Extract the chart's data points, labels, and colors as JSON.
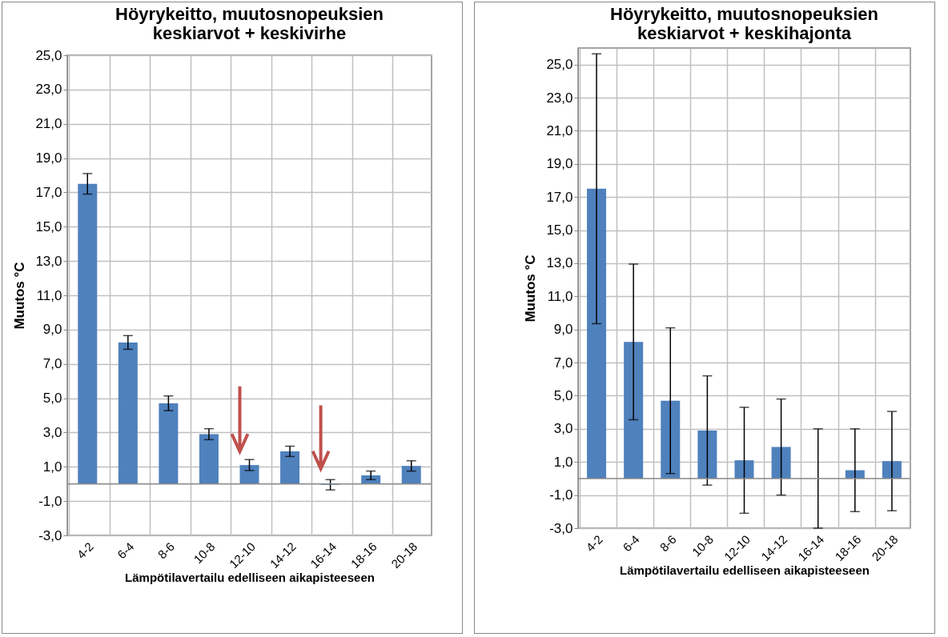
{
  "chart_data": [
    {
      "type": "bar",
      "title": "Höyrykeitto, muutosnopeuksien\nkeskiarvot + keskivirhe",
      "xlabel": "Lämpötilavertailu edelliseen aikapisteeseen",
      "ylabel": "Muutos °C",
      "categories": [
        "4-2",
        "6-4",
        "8-6",
        "10-8",
        "12-10",
        "14-12",
        "16-14",
        "18-16",
        "20-18"
      ],
      "series": [
        {
          "color": "#4f81bd",
          "values": [
            17.5,
            8.25,
            4.7,
            2.9,
            1.1,
            1.9,
            -0.05,
            0.5,
            1.05
          ],
          "errors": [
            0.6,
            0.4,
            0.43,
            0.32,
            0.32,
            0.3,
            0.3,
            0.25,
            0.3
          ]
        }
      ],
      "ylim": [
        -3,
        25
      ],
      "yticks": [
        {
          "value": -3,
          "label": "-3,0"
        },
        {
          "value": -1,
          "label": "-1,0"
        },
        {
          "value": 1,
          "label": "1,0"
        },
        {
          "value": 3,
          "label": "3,0"
        },
        {
          "value": 5,
          "label": "5,0"
        },
        {
          "value": 7,
          "label": "7,0"
        },
        {
          "value": 9,
          "label": "9,0"
        },
        {
          "value": 11,
          "label": "11,0"
        },
        {
          "value": 13,
          "label": "13,0"
        },
        {
          "value": 15,
          "label": "15,0"
        },
        {
          "value": 17,
          "label": "17,0"
        },
        {
          "value": 19,
          "label": "19,0"
        },
        {
          "value": 21,
          "label": "21,0"
        },
        {
          "value": 23,
          "label": "23,0"
        },
        {
          "value": 25,
          "label": "25,0"
        }
      ],
      "grid": true
    },
    {
      "type": "bar",
      "title": "Höyrykeitto, muutosnopeuksien\nkeskiarvot + keskihajonta",
      "xlabel": "Lämpötilavertailu edelliseen aikapisteeseen",
      "ylabel": "Muutos °C",
      "categories": [
        "4-2",
        "6-4",
        "8-6",
        "10-8",
        "12-10",
        "14-12",
        "16-14",
        "18-16",
        "20-18"
      ],
      "series": [
        {
          "color": "#4f81bd",
          "values": [
            17.5,
            8.25,
            4.7,
            2.9,
            1.1,
            1.9,
            0,
            0.5,
            1.05
          ],
          "errors": [
            8.15,
            4.7,
            4.4,
            3.3,
            3.2,
            2.9,
            3.0,
            2.5,
            3.0
          ]
        }
      ],
      "ylim": [
        -3,
        26
      ],
      "yticks": [
        {
          "value": -3,
          "label": "-3,0"
        },
        {
          "value": -1,
          "label": "-1,0"
        },
        {
          "value": 1,
          "label": "1,0"
        },
        {
          "value": 3,
          "label": "3,0"
        },
        {
          "value": 5,
          "label": "5,0"
        },
        {
          "value": 7,
          "label": "7,0"
        },
        {
          "value": 9,
          "label": "9,0"
        },
        {
          "value": 11,
          "label": "11,0"
        },
        {
          "value": 13,
          "label": "13,0"
        },
        {
          "value": 15,
          "label": "15,0"
        },
        {
          "value": 17,
          "label": "17,0"
        },
        {
          "value": 19,
          "label": "19,0"
        },
        {
          "value": 21,
          "label": "21,0"
        },
        {
          "value": 23,
          "label": "23,0"
        },
        {
          "value": 25,
          "label": "25,0"
        }
      ],
      "grid": true
    }
  ]
}
